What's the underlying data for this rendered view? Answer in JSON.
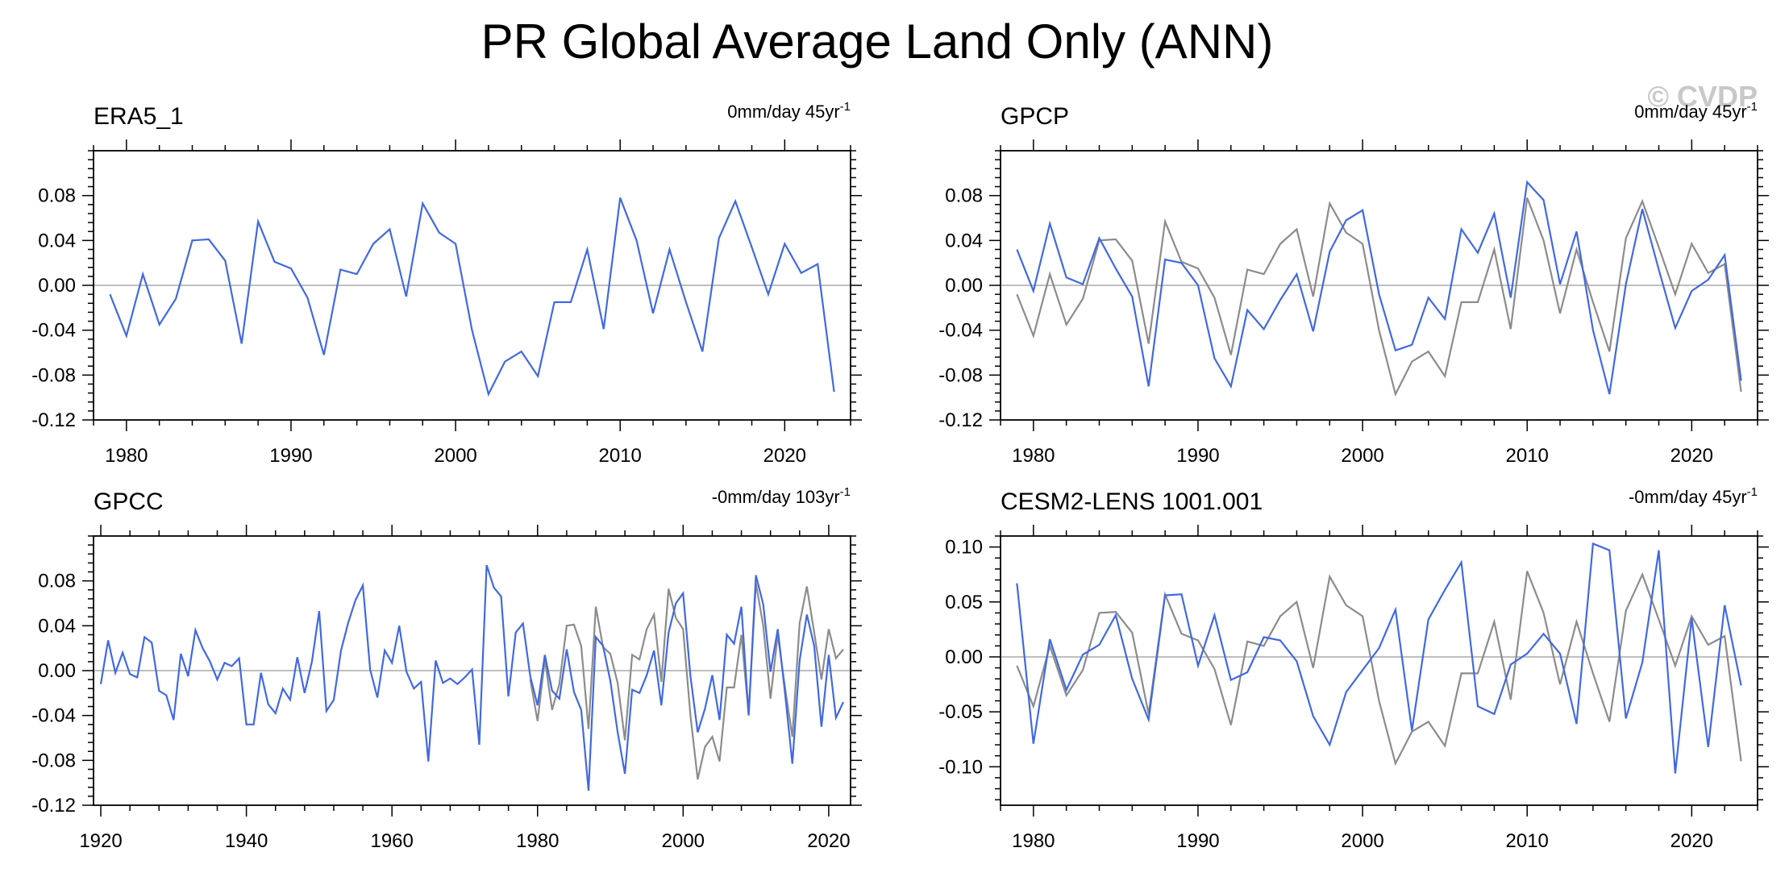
{
  "figure": {
    "title": "PR Global Average Land Only (ANN)",
    "watermark": "© CVDP",
    "colors": {
      "primary": "#4169e1",
      "reference": "#8c8c8c",
      "zero_line": "#aaaaaa",
      "axis": "#000000",
      "watermark": "#c8c8c8"
    }
  },
  "chart_data": [
    {
      "type": "line",
      "title": "ERA5_1",
      "trend_label": "0mm/day 45yr",
      "trend_sup": "-1",
      "xlim": [
        1978,
        2024
      ],
      "ylim": [
        -0.12,
        0.12
      ],
      "xticks": [
        1980,
        1990,
        2000,
        2010,
        2020
      ],
      "yticks": [
        -0.12,
        -0.08,
        -0.04,
        0.0,
        0.04,
        0.08
      ],
      "ytick_labels": [
        "-0.12",
        "-0.08",
        "-0.04",
        "0.00",
        "0.04",
        "0.08"
      ],
      "series": [
        {
          "name": "ERA5_1",
          "color": "#4169e1",
          "x_start": 1979,
          "values": [
            -0.008,
            -0.045,
            0.01,
            -0.035,
            -0.012,
            0.04,
            0.041,
            0.022,
            -0.052,
            0.057,
            0.021,
            0.015,
            -0.011,
            -0.062,
            0.014,
            0.01,
            0.037,
            0.05,
            -0.01,
            0.073,
            0.047,
            0.037,
            -0.04,
            -0.097,
            -0.068,
            -0.059,
            -0.081,
            -0.015,
            -0.015,
            0.032,
            -0.039,
            0.078,
            0.04,
            -0.025,
            0.032,
            -0.015,
            -0.059,
            0.042,
            0.075,
            0.034,
            -0.008,
            0.037,
            0.011,
            0.019,
            -0.095
          ]
        }
      ]
    },
    {
      "type": "line",
      "title": "GPCP",
      "trend_label": "0mm/day 45yr",
      "trend_sup": "-1",
      "xlim": [
        1978,
        2024
      ],
      "ylim": [
        -0.12,
        0.12
      ],
      "xticks": [
        1980,
        1990,
        2000,
        2010,
        2020
      ],
      "yticks": [
        -0.12,
        -0.08,
        -0.04,
        0.0,
        0.04,
        0.08
      ],
      "ytick_labels": [
        "-0.12",
        "-0.08",
        "-0.04",
        "0.00",
        "0.04",
        "0.08"
      ],
      "series": [
        {
          "name": "ERA5_1 (reference)",
          "color": "#8c8c8c",
          "x_start": 1979,
          "values": [
            -0.008,
            -0.045,
            0.01,
            -0.035,
            -0.012,
            0.04,
            0.041,
            0.022,
            -0.052,
            0.057,
            0.021,
            0.015,
            -0.011,
            -0.062,
            0.014,
            0.01,
            0.037,
            0.05,
            -0.01,
            0.073,
            0.047,
            0.037,
            -0.04,
            -0.097,
            -0.068,
            -0.059,
            -0.081,
            -0.015,
            -0.015,
            0.032,
            -0.039,
            0.078,
            0.04,
            -0.025,
            0.032,
            -0.015,
            -0.059,
            0.042,
            0.075,
            0.034,
            -0.008,
            0.037,
            0.011,
            0.019,
            -0.095
          ]
        },
        {
          "name": "GPCP",
          "color": "#4169e1",
          "x_start": 1979,
          "values": [
            0.032,
            -0.005,
            0.055,
            0.007,
            0.001,
            0.042,
            0.015,
            -0.01,
            -0.09,
            0.023,
            0.02,
            0.0,
            -0.065,
            -0.09,
            -0.022,
            -0.039,
            -0.013,
            0.01,
            -0.041,
            0.03,
            0.058,
            0.067,
            -0.008,
            -0.058,
            -0.053,
            -0.011,
            -0.03,
            0.05,
            0.029,
            0.064,
            -0.011,
            0.092,
            0.076,
            0.001,
            0.048,
            -0.04,
            -0.097,
            0.001,
            0.068,
            0.014,
            -0.038,
            -0.005,
            0.005,
            0.027,
            -0.085
          ]
        }
      ]
    },
    {
      "type": "line",
      "title": "GPCC",
      "trend_label": "-0mm/day 103yr",
      "trend_sup": "-1",
      "xlim": [
        1919,
        2023
      ],
      "ylim": [
        -0.12,
        0.12
      ],
      "xticks": [
        1920,
        1940,
        1960,
        1980,
        2000,
        2020
      ],
      "yticks": [
        -0.12,
        -0.08,
        -0.04,
        0.0,
        0.04,
        0.08
      ],
      "ytick_labels": [
        "-0.12",
        "-0.08",
        "-0.04",
        "0.00",
        "0.04",
        "0.08"
      ],
      "series": [
        {
          "name": "ERA5_1 (reference)",
          "color": "#8c8c8c",
          "x_start": 1979,
          "values": [
            -0.008,
            -0.045,
            0.01,
            -0.035,
            -0.012,
            0.04,
            0.041,
            0.022,
            -0.052,
            0.057,
            0.021,
            0.015,
            -0.011,
            -0.062,
            0.014,
            0.01,
            0.037,
            0.05,
            -0.01,
            0.073,
            0.047,
            0.037,
            -0.04,
            -0.097,
            -0.068,
            -0.059,
            -0.081,
            -0.015,
            -0.015,
            0.032,
            -0.039,
            0.078,
            0.04,
            -0.025,
            0.032,
            -0.015,
            -0.059,
            0.042,
            0.075,
            0.034,
            -0.008,
            0.037,
            0.011,
            0.019
          ]
        },
        {
          "name": "GPCC",
          "color": "#4169e1",
          "x_start": 1920,
          "values": [
            -0.012,
            0.027,
            -0.002,
            0.016,
            -0.003,
            -0.006,
            0.03,
            0.025,
            -0.018,
            -0.022,
            -0.044,
            0.015,
            -0.005,
            0.036,
            0.02,
            0.008,
            -0.008,
            0.007,
            0.004,
            0.011,
            -0.048,
            -0.048,
            -0.002,
            -0.03,
            -0.038,
            -0.016,
            -0.026,
            0.012,
            -0.02,
            0.008,
            0.053,
            -0.036,
            -0.026,
            0.018,
            0.043,
            0.063,
            0.076,
            0.001,
            -0.024,
            0.018,
            0.007,
            0.04,
            -0.001,
            -0.016,
            -0.01,
            -0.081,
            0.009,
            -0.011,
            -0.007,
            -0.012,
            -0.006,
            0.001,
            -0.066,
            0.094,
            0.074,
            0.066,
            -0.023,
            0.034,
            0.042,
            -0.005,
            -0.031,
            0.014,
            -0.018,
            -0.025,
            0.019,
            -0.019,
            -0.035,
            -0.107,
            0.03,
            0.022,
            -0.009,
            -0.055,
            -0.092,
            -0.017,
            -0.02,
            -0.004,
            0.018,
            -0.031,
            0.034,
            0.06,
            0.069,
            -0.005,
            -0.055,
            -0.034,
            -0.004,
            -0.044,
            0.032,
            0.024,
            0.057,
            -0.04,
            0.085,
            0.059,
            -0.001,
            0.037,
            -0.02,
            -0.083,
            0.009,
            0.05,
            0.022,
            -0.05,
            0.014,
            -0.042,
            -0.028
          ]
        }
      ]
    },
    {
      "type": "line",
      "title": "CESM2-LENS 1001.001",
      "trend_label": "-0mm/day 45yr",
      "trend_sup": "-1",
      "xlim": [
        1978,
        2024
      ],
      "ylim": [
        -0.135,
        0.11
      ],
      "xticks": [
        1980,
        1990,
        2000,
        2010,
        2020
      ],
      "yticks": [
        -0.1,
        -0.05,
        0.0,
        0.05,
        0.1
      ],
      "ytick_labels": [
        "-0.10",
        "-0.05",
        "0.00",
        "0.05",
        "0.10"
      ],
      "series": [
        {
          "name": "ERA5_1 (reference)",
          "color": "#8c8c8c",
          "x_start": 1979,
          "values": [
            -0.008,
            -0.045,
            0.01,
            -0.035,
            -0.012,
            0.04,
            0.041,
            0.022,
            -0.052,
            0.057,
            0.021,
            0.015,
            -0.011,
            -0.062,
            0.014,
            0.01,
            0.037,
            0.05,
            -0.01,
            0.073,
            0.047,
            0.037,
            -0.04,
            -0.097,
            -0.068,
            -0.059,
            -0.081,
            -0.015,
            -0.015,
            0.032,
            -0.039,
            0.078,
            0.04,
            -0.025,
            0.032,
            -0.015,
            -0.059,
            0.042,
            0.075,
            0.034,
            -0.008,
            0.037,
            0.011,
            0.019,
            -0.095
          ]
        },
        {
          "name": "CESM2-LENS 1001.001",
          "color": "#4169e1",
          "x_start": 1979,
          "values": [
            0.067,
            -0.079,
            0.016,
            -0.03,
            0.002,
            0.011,
            0.038,
            -0.02,
            -0.057,
            0.056,
            0.057,
            -0.008,
            0.038,
            -0.021,
            -0.014,
            0.018,
            0.015,
            -0.004,
            -0.054,
            -0.08,
            -0.032,
            -0.012,
            0.008,
            0.043,
            -0.067,
            0.034,
            0.061,
            0.086,
            -0.045,
            -0.052,
            -0.007,
            0.003,
            0.021,
            0.003,
            -0.061,
            0.103,
            0.097,
            -0.056,
            -0.005,
            0.097,
            -0.106,
            0.035,
            -0.082,
            0.047,
            -0.026
          ]
        }
      ]
    }
  ]
}
